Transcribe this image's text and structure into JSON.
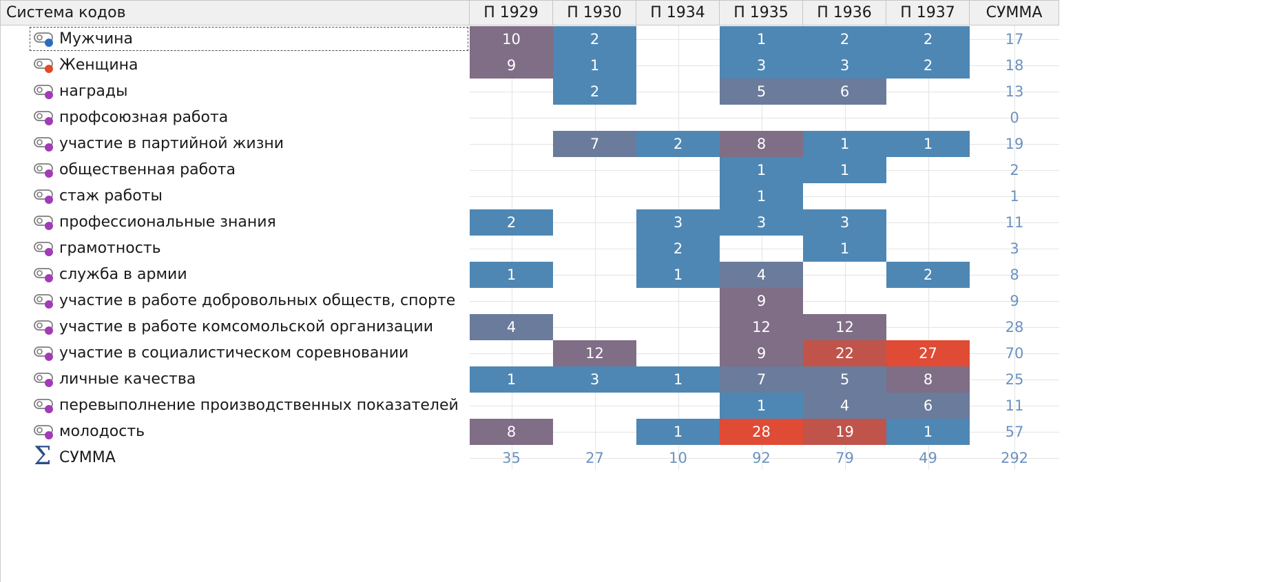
{
  "header": {
    "title": "Система кодов",
    "columns": [
      "П 1929",
      "П 1930",
      "П 1934",
      "П 1935",
      "П 1936",
      "П 1937"
    ],
    "sum_label": "СУММА"
  },
  "colors": {
    "blue": "#4e87b4",
    "slate": "#6a7b9b",
    "mauve": "#7f6e86",
    "brick": "#c0544a",
    "red": "#e04b35",
    "sum_text": "#6b92c0",
    "icon_blue": "#2d6bbf",
    "icon_red": "#e04b2a",
    "icon_purple": "#a23bb8"
  },
  "rows": [
    {
      "label": "Мужчина",
      "icon": "code-icon-blue",
      "values": [
        10,
        2,
        null,
        1,
        2,
        2
      ],
      "tones": [
        "mauve",
        "blue",
        null,
        "blue",
        "blue",
        "blue"
      ],
      "sum": 17
    },
    {
      "label": "Женщина",
      "icon": "code-icon-red",
      "values": [
        9,
        1,
        null,
        3,
        3,
        2
      ],
      "tones": [
        "mauve",
        "blue",
        null,
        "blue",
        "blue",
        "blue"
      ],
      "sum": 18
    },
    {
      "label": "награды",
      "icon": "code-icon-purple",
      "values": [
        null,
        2,
        null,
        5,
        6,
        null
      ],
      "tones": [
        null,
        "blue",
        null,
        "slate",
        "slate",
        null
      ],
      "sum": 13
    },
    {
      "label": "профсоюзная работа",
      "icon": "code-icon-purple",
      "values": [
        null,
        null,
        null,
        null,
        null,
        null
      ],
      "tones": [
        null,
        null,
        null,
        null,
        null,
        null
      ],
      "sum": 0
    },
    {
      "label": "участие в партийной жизни",
      "icon": "code-icon-purple",
      "values": [
        null,
        7,
        2,
        8,
        1,
        1
      ],
      "tones": [
        null,
        "slate",
        "blue",
        "mauve",
        "blue",
        "blue"
      ],
      "sum": 19
    },
    {
      "label": "общественная работа",
      "icon": "code-icon-purple",
      "values": [
        null,
        null,
        null,
        1,
        1,
        null
      ],
      "tones": [
        null,
        null,
        null,
        "blue",
        "blue",
        null
      ],
      "sum": 2
    },
    {
      "label": "стаж работы",
      "icon": "code-icon-purple",
      "values": [
        null,
        null,
        null,
        1,
        null,
        null
      ],
      "tones": [
        null,
        null,
        null,
        "blue",
        null,
        null
      ],
      "sum": 1
    },
    {
      "label": "профессиональные знания",
      "icon": "code-icon-purple",
      "values": [
        2,
        null,
        3,
        3,
        3,
        null
      ],
      "tones": [
        "blue",
        null,
        "blue",
        "blue",
        "blue",
        null
      ],
      "sum": 11
    },
    {
      "label": "грамотность",
      "icon": "code-icon-purple",
      "values": [
        null,
        null,
        2,
        null,
        1,
        null
      ],
      "tones": [
        null,
        null,
        "blue",
        null,
        "blue",
        null
      ],
      "sum": 3
    },
    {
      "label": "служба в армии",
      "icon": "code-icon-purple",
      "values": [
        1,
        null,
        1,
        4,
        null,
        2
      ],
      "tones": [
        "blue",
        null,
        "blue",
        "slate",
        null,
        "blue"
      ],
      "sum": 8
    },
    {
      "label": "участие в работе добровольных обществ, спорте",
      "icon": "code-icon-purple",
      "values": [
        null,
        null,
        null,
        9,
        null,
        null
      ],
      "tones": [
        null,
        null,
        null,
        "mauve",
        null,
        null
      ],
      "sum": 9
    },
    {
      "label": "участие в работе комсомольской организации",
      "icon": "code-icon-purple",
      "values": [
        4,
        null,
        null,
        12,
        12,
        null
      ],
      "tones": [
        "slate",
        null,
        null,
        "mauve",
        "mauve",
        null
      ],
      "sum": 28
    },
    {
      "label": "участие в социалистическом соревновании",
      "icon": "code-icon-purple",
      "values": [
        null,
        12,
        null,
        9,
        22,
        27
      ],
      "tones": [
        null,
        "mauve",
        null,
        "mauve",
        "brick",
        "red"
      ],
      "sum": 70
    },
    {
      "label": "личные качества",
      "icon": "code-icon-purple",
      "values": [
        1,
        3,
        1,
        7,
        5,
        8
      ],
      "tones": [
        "blue",
        "blue",
        "blue",
        "slate",
        "slate",
        "mauve"
      ],
      "sum": 25
    },
    {
      "label": "перевыполнение производственных показателей",
      "icon": "code-icon-purple",
      "values": [
        null,
        null,
        null,
        1,
        4,
        6
      ],
      "tones": [
        null,
        null,
        null,
        "blue",
        "slate",
        "slate"
      ],
      "sum": 11
    },
    {
      "label": "молодость",
      "icon": "code-icon-purple",
      "values": [
        8,
        null,
        1,
        28,
        19,
        1
      ],
      "tones": [
        "mauve",
        null,
        "blue",
        "red",
        "brick",
        "blue"
      ],
      "sum": 57
    }
  ],
  "totals": {
    "label": "СУММА",
    "icon": "sigma-icon",
    "sigma_glyph": "Σ",
    "values": [
      35,
      27,
      10,
      92,
      79,
      49
    ],
    "sum": 292
  }
}
